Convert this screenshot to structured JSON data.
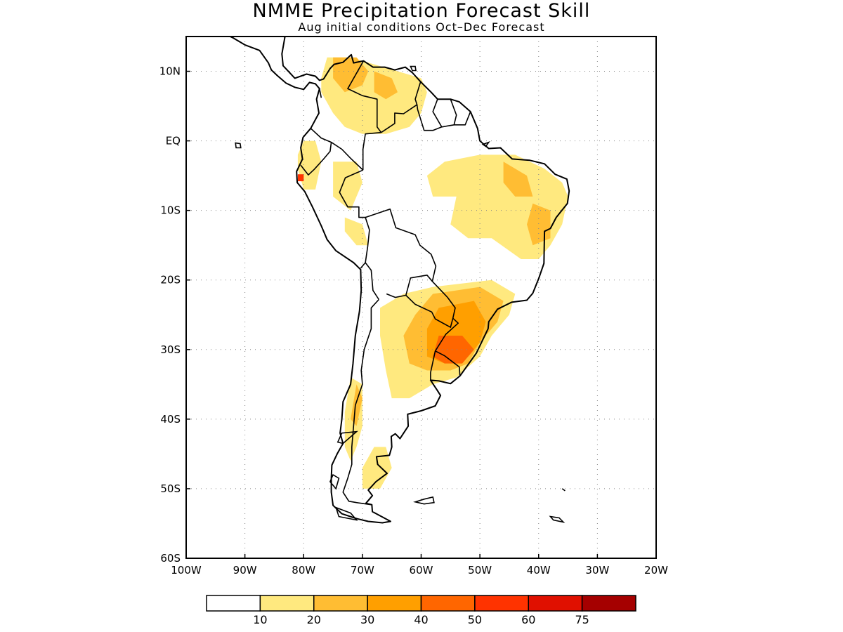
{
  "title": "NMME Precipitation Forecast Skill",
  "subtitle": "Aug initial conditions  Oct–Dec Forecast",
  "map": {
    "lon_range": [
      -100,
      -20
    ],
    "lat_range": [
      -60,
      15
    ],
    "lat_ticks": [
      {
        "value": 10,
        "label": "10N"
      },
      {
        "value": 0,
        "label": "EQ"
      },
      {
        "value": -10,
        "label": "10S"
      },
      {
        "value": -20,
        "label": "20S"
      },
      {
        "value": -30,
        "label": "30S"
      },
      {
        "value": -40,
        "label": "40S"
      },
      {
        "value": -50,
        "label": "50S"
      },
      {
        "value": -60,
        "label": "60S"
      }
    ],
    "lon_ticks": [
      {
        "value": -100,
        "label": "100W"
      },
      {
        "value": -90,
        "label": "90W"
      },
      {
        "value": -80,
        "label": "80W"
      },
      {
        "value": -70,
        "label": "70W"
      },
      {
        "value": -60,
        "label": "60W"
      },
      {
        "value": -50,
        "label": "50W"
      },
      {
        "value": -40,
        "label": "40W"
      },
      {
        "value": -30,
        "label": "30W"
      },
      {
        "value": -20,
        "label": "20W"
      }
    ],
    "grid": "dotted"
  },
  "colorbar": {
    "colors": [
      "#ffffff",
      "#ffe97f",
      "#ffbd33",
      "#ff9f00",
      "#ff6600",
      "#ff3300",
      "#e01000",
      "#a50000"
    ],
    "labels": [
      "10",
      "20",
      "30",
      "40",
      "50",
      "60",
      "75"
    ]
  },
  "skill_regions": [
    {
      "level": 1,
      "points": [
        [
          -76,
          12
        ],
        [
          -72,
          12
        ],
        [
          -68,
          11
        ],
        [
          -64,
          10
        ],
        [
          -60,
          9
        ],
        [
          -59,
          7
        ],
        [
          -60,
          4
        ],
        [
          -62,
          2
        ],
        [
          -66,
          1
        ],
        [
          -70,
          1
        ],
        [
          -73,
          2
        ],
        [
          -75,
          4
        ],
        [
          -77,
          7
        ],
        [
          -77,
          9
        ]
      ]
    },
    {
      "level": 2,
      "points": [
        [
          -75,
          12
        ],
        [
          -71,
          12
        ],
        [
          -69,
          10
        ],
        [
          -70,
          8
        ],
        [
          -73,
          7
        ],
        [
          -75,
          9
        ]
      ]
    },
    {
      "level": 2,
      "points": [
        [
          -68,
          10
        ],
        [
          -65,
          9
        ],
        [
          -64,
          7
        ],
        [
          -66,
          6
        ],
        [
          -68,
          7
        ]
      ]
    },
    {
      "level": 1,
      "points": [
        [
          -80,
          0
        ],
        [
          -78,
          0
        ],
        [
          -77,
          -3
        ],
        [
          -78,
          -7
        ],
        [
          -80,
          -7
        ],
        [
          -81,
          -4
        ],
        [
          -81,
          -2
        ]
      ]
    },
    {
      "level": 5,
      "points": [
        [
          -81,
          -4.8
        ],
        [
          -80,
          -4.8
        ],
        [
          -80,
          -5.8
        ],
        [
          -81,
          -5.8
        ]
      ]
    },
    {
      "level": 1,
      "points": [
        [
          -75,
          -3
        ],
        [
          -71,
          -3
        ],
        [
          -70,
          -6
        ],
        [
          -72,
          -10
        ],
        [
          -75,
          -8
        ]
      ]
    },
    {
      "level": 1,
      "points": [
        [
          -73,
          -11
        ],
        [
          -70,
          -12
        ],
        [
          -69,
          -15
        ],
        [
          -71,
          -15
        ],
        [
          -73,
          -13
        ]
      ]
    },
    {
      "level": 1,
      "points": [
        [
          -56,
          -3
        ],
        [
          -50,
          -2
        ],
        [
          -44,
          -2
        ],
        [
          -39,
          -4
        ],
        [
          -36,
          -6
        ],
        [
          -35,
          -8
        ],
        [
          -36,
          -12
        ],
        [
          -38,
          -15
        ],
        [
          -40,
          -17
        ],
        [
          -43,
          -17
        ],
        [
          -48,
          -14
        ],
        [
          -52,
          -14
        ],
        [
          -55,
          -12
        ],
        [
          -54,
          -8
        ],
        [
          -58,
          -8
        ],
        [
          -59,
          -5
        ]
      ]
    },
    {
      "level": 2,
      "points": [
        [
          -46,
          -3
        ],
        [
          -42,
          -5
        ],
        [
          -41,
          -8
        ],
        [
          -44,
          -8
        ],
        [
          -46,
          -6
        ]
      ]
    },
    {
      "level": 2,
      "points": [
        [
          -41,
          -9
        ],
        [
          -38,
          -10
        ],
        [
          -38,
          -14
        ],
        [
          -41,
          -15
        ],
        [
          -42,
          -12
        ]
      ]
    },
    {
      "level": 1,
      "points": [
        [
          -58,
          -21
        ],
        [
          -48,
          -20
        ],
        [
          -44,
          -22
        ],
        [
          -45,
          -25
        ],
        [
          -48,
          -28
        ],
        [
          -50,
          -31
        ],
        [
          -54,
          -34
        ],
        [
          -58,
          -35
        ],
        [
          -62,
          -37
        ],
        [
          -65,
          -37
        ],
        [
          -66,
          -33
        ],
        [
          -67,
          -28
        ],
        [
          -67,
          -24
        ],
        [
          -63,
          -22
        ]
      ]
    },
    {
      "level": 2,
      "points": [
        [
          -58,
          -22
        ],
        [
          -50,
          -21
        ],
        [
          -46,
          -23
        ],
        [
          -47,
          -26
        ],
        [
          -50,
          -29
        ],
        [
          -52,
          -32
        ],
        [
          -55,
          -33
        ],
        [
          -59,
          -33
        ],
        [
          -62,
          -32
        ],
        [
          -63,
          -28
        ],
        [
          -61,
          -25
        ]
      ]
    },
    {
      "level": 3,
      "points": [
        [
          -57,
          -24
        ],
        [
          -51,
          -23
        ],
        [
          -49,
          -26
        ],
        [
          -50,
          -29
        ],
        [
          -52,
          -31
        ],
        [
          -56,
          -32
        ],
        [
          -59,
          -31
        ],
        [
          -59,
          -27
        ]
      ]
    },
    {
      "level": 4,
      "points": [
        [
          -57,
          -28
        ],
        [
          -53,
          -28
        ],
        [
          -51,
          -30
        ],
        [
          -53,
          -32
        ],
        [
          -56,
          -32
        ],
        [
          -58,
          -31
        ]
      ]
    },
    {
      "level": 1,
      "points": [
        [
          -72,
          -34
        ],
        [
          -70,
          -35
        ],
        [
          -70,
          -41
        ],
        [
          -71,
          -44
        ],
        [
          -72,
          -46
        ],
        [
          -73,
          -44
        ],
        [
          -73,
          -39
        ]
      ]
    },
    {
      "level": 2,
      "points": [
        [
          -71,
          -35
        ],
        [
          -70,
          -37
        ],
        [
          -71,
          -41
        ],
        [
          -72,
          -40
        ]
      ]
    },
    {
      "level": 1,
      "points": [
        [
          -68,
          -44
        ],
        [
          -66,
          -44
        ],
        [
          -65,
          -47
        ],
        [
          -67,
          -50
        ],
        [
          -70,
          -50
        ],
        [
          -70,
          -47
        ]
      ]
    }
  ]
}
